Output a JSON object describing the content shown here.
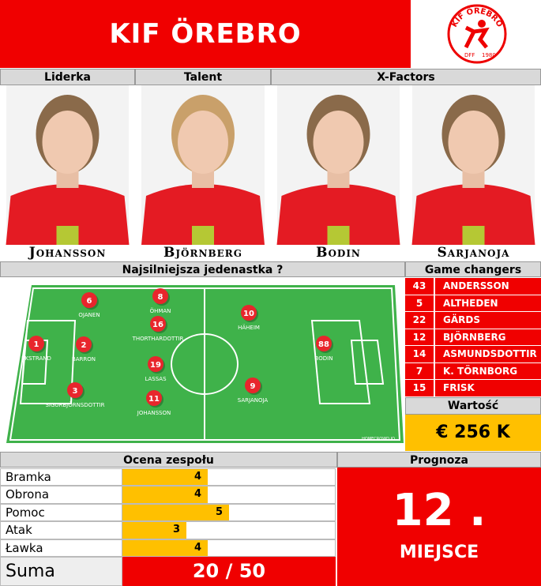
{
  "header": {
    "title": "KIF ÖREBRO",
    "logo": {
      "top": "KIF ÖREBRO",
      "left": "DFF",
      "right": "1980"
    }
  },
  "roles": [
    "Liderka",
    "Talent",
    "X-Factors"
  ],
  "featured": [
    "Johansson",
    "Björnberg",
    "Bodin",
    "Sarjanoja"
  ],
  "lineup": {
    "title": "Najsilniejsza jedenastka ?",
    "watermark": "HOMECROWD.IO",
    "players": [
      {
        "number": "6",
        "name": "OJANEN"
      },
      {
        "number": "8",
        "name": "ÖHMAN"
      },
      {
        "number": "16",
        "name": "THORTHARDOTTIR"
      },
      {
        "number": "10",
        "name": "HÄHEIM"
      },
      {
        "number": "1",
        "name": "EKSTRAND"
      },
      {
        "number": "2",
        "name": "BARRON"
      },
      {
        "number": "88",
        "name": "BODIN"
      },
      {
        "number": "19",
        "name": "LASSAS"
      },
      {
        "number": "3",
        "name": "SIGURBJÖRNSDOTTIR"
      },
      {
        "number": "11",
        "name": "JOHANSSON"
      },
      {
        "number": "9",
        "name": "SARJANOJA"
      }
    ]
  },
  "game_changers": {
    "title": "Game changers",
    "rows": [
      [
        "43",
        "ANDERSSON"
      ],
      [
        "5",
        "ALTHEDEN"
      ],
      [
        "22",
        "GÄRDS"
      ],
      [
        "12",
        "BJÖRNBERG"
      ],
      [
        "14",
        "ASMUNDSDOTTIR"
      ],
      [
        "7",
        "K. TÖRNBORG"
      ],
      [
        "15",
        "FRISK"
      ]
    ]
  },
  "value": {
    "title": "Wartość",
    "text": "€  256 K"
  },
  "rating": {
    "title": "Ocena zespołu",
    "categories": [
      "Bramka",
      "Obrona",
      "Pomoc",
      "Atak",
      "Ławka"
    ],
    "values": [
      4,
      4,
      5,
      3,
      4
    ],
    "color": "#ffc000",
    "sum_label": "Suma",
    "sum": "20 / 50"
  },
  "forecast": {
    "title": "Prognoza",
    "place": "12 .",
    "label": "MIEJSCE"
  }
}
